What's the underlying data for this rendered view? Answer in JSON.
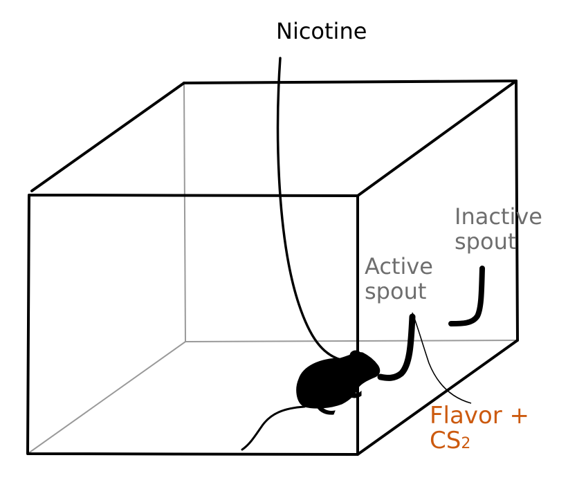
{
  "labels": {
    "infusion": "Nicotine",
    "inactive_spout": [
      "Inactive",
      "spout"
    ],
    "active_spout": [
      "Active",
      "spout"
    ],
    "flavor_line1": "Flavor +",
    "flavor_cs": "CS",
    "flavor_cs_sub": "2"
  },
  "colors": {
    "frame": "#000000",
    "hidden_edges": "#999999",
    "spout_label": "#6e6e6e",
    "flavor_label": "#cc5a0f",
    "rat": "#000000"
  }
}
